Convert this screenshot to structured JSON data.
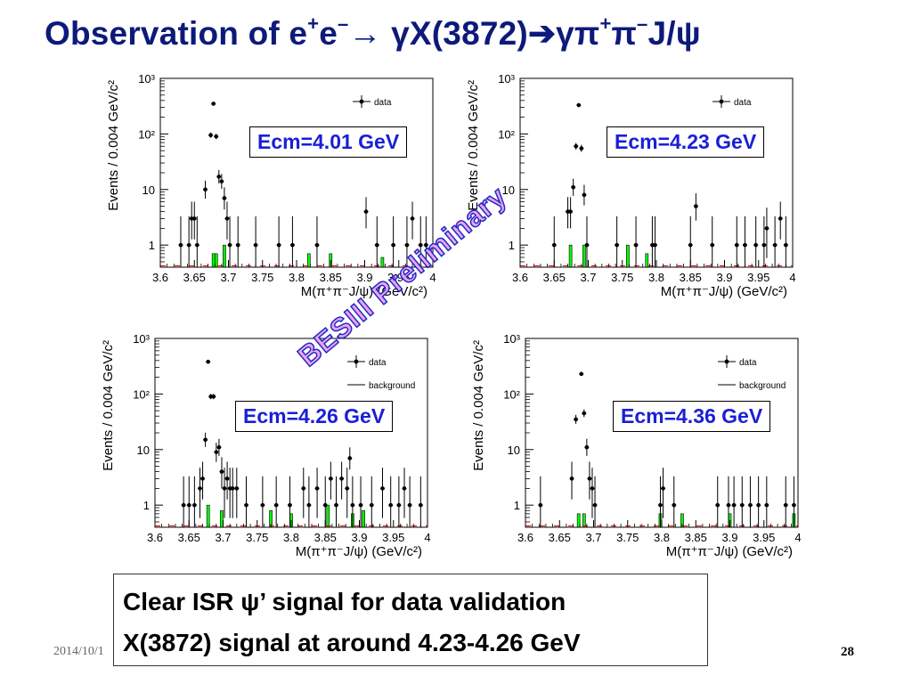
{
  "slide": {
    "title_parts": {
      "a": "Observation of e",
      "sup1": "+",
      "b": "e",
      "sup2": "–",
      "c": "→ γX(3872)",
      "d": "➔",
      "e": "γπ",
      "sup3": "+",
      "f": "π",
      "sup4": "–",
      "g": "J/ψ"
    },
    "watermark": "BESIII Preliminary",
    "note_lines": [
      "Clear ISR ψ’ signal for data validation",
      "X(3872) signal at around 4.23-4.26 GeV"
    ],
    "date": "2014/10/1",
    "page_number": "28"
  },
  "colors": {
    "title": "#0d1a7a",
    "ecm_text": "#1a1fd6",
    "background_fill": "#00ff00",
    "background_line": "#ff0000",
    "watermark_fill": "#f3a2f0",
    "watermark_stroke": "#1f2bc7"
  },
  "chart_data": [
    {
      "type": "scatter",
      "label": "Ecm=4.01 GeV",
      "xlabel": "M(π⁺π⁻J/ψ) (GeV/c²)",
      "ylabel": "Events / 0.004 GeV/c²",
      "xlim": [
        3.6,
        4.0
      ],
      "ylim": [
        0.4,
        1000
      ],
      "yscale": "log",
      "xticks": [
        "3.6",
        "3.65",
        "3.7",
        "3.75",
        "3.8",
        "3.85",
        "3.9",
        "3.95",
        "4"
      ],
      "yticks": [
        "1",
        "10",
        "10²",
        "10³"
      ],
      "legend": [
        "data"
      ],
      "data_x": [
        3.63,
        3.642,
        3.646,
        3.65,
        3.654,
        3.666,
        3.674,
        3.678,
        3.682,
        3.686,
        3.69,
        3.694,
        3.698,
        3.702,
        3.714,
        3.74,
        3.774,
        3.794,
        3.83,
        3.902,
        3.918,
        3.942,
        3.962,
        3.97,
        3.982,
        3.99
      ],
      "data_y": [
        1,
        1,
        3,
        3,
        1,
        10,
        95,
        350,
        90,
        17,
        14,
        7,
        3,
        1,
        1,
        1,
        1,
        1,
        1,
        4,
        1,
        1,
        1,
        3,
        1,
        1
      ],
      "background_x": [
        3.678,
        3.682,
        3.694,
        3.818,
        3.85,
        3.926
      ],
      "background_y": [
        0.7,
        0.7,
        1,
        0.7,
        0.7,
        0.6
      ]
    },
    {
      "type": "scatter",
      "label": "Ecm=4.23 GeV",
      "xlabel": "M(π⁺π⁻J/ψ) (GeV/c²)",
      "ylabel": "Events / 0.004 GeV/c²",
      "xlim": [
        3.6,
        4.0
      ],
      "ylim": [
        0.4,
        1000
      ],
      "yscale": "log",
      "xticks": [
        "3.6",
        "3.65",
        "3.7",
        "3.75",
        "3.8",
        "3.85",
        "3.9",
        "3.95",
        "4"
      ],
      "yticks": [
        "1",
        "10",
        "10²",
        "10³"
      ],
      "legend": [
        "data"
      ],
      "data_x": [
        3.65,
        3.67,
        3.674,
        3.678,
        3.682,
        3.686,
        3.69,
        3.694,
        3.698,
        3.742,
        3.77,
        3.794,
        3.798,
        3.85,
        3.858,
        3.882,
        3.918,
        3.93,
        3.946,
        3.958,
        3.962,
        3.974,
        3.982,
        3.99
      ],
      "data_y": [
        1,
        4,
        4,
        11,
        60,
        330,
        55,
        8,
        1,
        1,
        1,
        1,
        1,
        1,
        5,
        1,
        1,
        1,
        1,
        1,
        2,
        1,
        3,
        1
      ],
      "background_x": [
        3.674,
        3.694,
        3.758,
        3.786
      ],
      "background_y": [
        1,
        1,
        1,
        0.7
      ]
    },
    {
      "type": "scatter",
      "label": "Ecm=4.26 GeV",
      "xlabel": "M(π⁺π⁻J/ψ) (GeV/c²)",
      "ylabel": "Events / 0.004 GeV/c²",
      "xlim": [
        3.6,
        4.0
      ],
      "ylim": [
        0.4,
        1000
      ],
      "yscale": "log",
      "xticks": [
        "3.6",
        "3.65",
        "3.7",
        "3.75",
        "3.8",
        "3.85",
        "3.9",
        "3.95",
        "4"
      ],
      "yticks": [
        "1",
        "10",
        "10²",
        "10³"
      ],
      "legend": [
        "data",
        "background"
      ],
      "data_x": [
        3.642,
        3.65,
        3.658,
        3.666,
        3.67,
        3.674,
        3.678,
        3.682,
        3.686,
        3.69,
        3.694,
        3.698,
        3.702,
        3.706,
        3.71,
        3.714,
        3.72,
        3.734,
        3.758,
        3.778,
        3.798,
        3.818,
        3.826,
        3.838,
        3.85,
        3.858,
        3.866,
        3.874,
        3.882,
        3.886,
        3.89,
        3.902,
        3.918,
        3.934,
        3.946,
        3.958,
        3.966,
        3.974,
        3.99
      ],
      "data_y": [
        1,
        1,
        1,
        2,
        3,
        15,
        380,
        90,
        90,
        9,
        11,
        4,
        2,
        3,
        2,
        2,
        2,
        1,
        1,
        1,
        1,
        2,
        1,
        2,
        1,
        3,
        1,
        3,
        2,
        7,
        1,
        1,
        1,
        2,
        1,
        1,
        2,
        1,
        1
      ],
      "background_x": [
        3.678,
        3.698,
        3.77,
        3.8,
        3.854,
        3.89,
        3.906
      ],
      "background_y": [
        1,
        0.8,
        0.8,
        0.7,
        1,
        0.7,
        0.8
      ]
    },
    {
      "type": "scatter",
      "label": "Ecm=4.36 GeV",
      "xlabel": "M(π⁺π⁻J/ψ) (GeV/c²)",
      "ylabel": "Events / 0.004 GeV/c²",
      "xlim": [
        3.6,
        4.0
      ],
      "ylim": [
        0.4,
        1000
      ],
      "yscale": "log",
      "xticks": [
        "3.6",
        "3.65",
        "3.7",
        "3.75",
        "3.8",
        "3.85",
        "3.9",
        "3.95",
        "4"
      ],
      "yticks": [
        "1",
        "10",
        "10²",
        "10³"
      ],
      "legend": [
        "data",
        "background"
      ],
      "data_x": [
        3.622,
        3.668,
        3.674,
        3.682,
        3.686,
        3.69,
        3.694,
        3.698,
        3.702,
        3.798,
        3.802,
        3.818,
        3.882,
        3.898,
        3.906,
        3.918,
        3.93,
        3.942,
        3.954,
        3.982,
        3.994
      ],
      "data_y": [
        1,
        3,
        35,
        230,
        45,
        11,
        3,
        2,
        1,
        1,
        2,
        1,
        1,
        1,
        1,
        1,
        1,
        1,
        1,
        1,
        1
      ],
      "background_x": [
        3.678,
        3.686,
        3.798,
        3.83,
        3.9,
        3.994
      ],
      "background_y": [
        0.7,
        0.7,
        0.7,
        0.7,
        0.7,
        0.7
      ]
    }
  ]
}
